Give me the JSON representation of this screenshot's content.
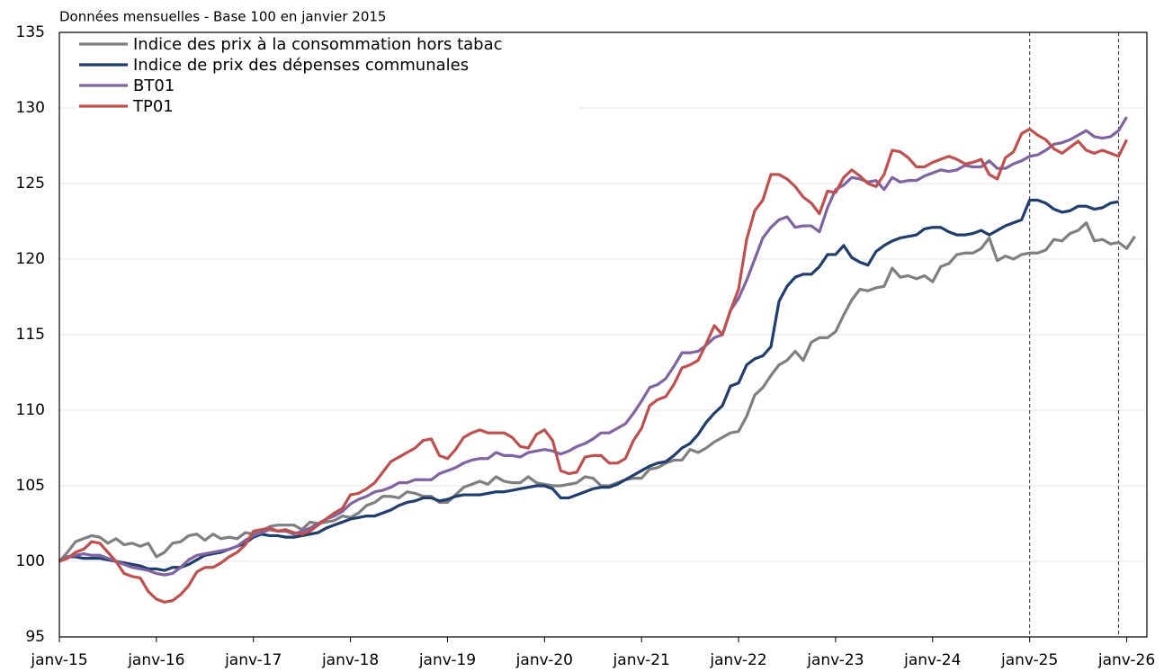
{
  "chart_data": {
    "type": "line",
    "subtitle": "Données mensuelles - Base 100 en janvier 2015",
    "categories": [
      "janv-15",
      null,
      null,
      null,
      null,
      null,
      null,
      null,
      null,
      null,
      null,
      null,
      "janv-16",
      null,
      null,
      null,
      null,
      null,
      null,
      null,
      null,
      null,
      null,
      null,
      "janv-17",
      null,
      null,
      null,
      null,
      null,
      null,
      null,
      null,
      null,
      null,
      null,
      "janv-18",
      null,
      null,
      null,
      null,
      null,
      null,
      null,
      null,
      null,
      null,
      null,
      "janv-19",
      null,
      null,
      null,
      null,
      null,
      null,
      null,
      null,
      null,
      null,
      null,
      "janv-20",
      null,
      null,
      null,
      null,
      null,
      null,
      null,
      null,
      null,
      null,
      null,
      "janv-21",
      null,
      null,
      null,
      null,
      null,
      null,
      null,
      null,
      null,
      null,
      null,
      "janv-22",
      null,
      null,
      null,
      null,
      null,
      null,
      null,
      null,
      null,
      null,
      null,
      "janv-23",
      null,
      null,
      null,
      null,
      null,
      null,
      null,
      null,
      null,
      null,
      null,
      "janv-24",
      null,
      null,
      null,
      null,
      null,
      null,
      null,
      null,
      null,
      null,
      null,
      "janv-25",
      null,
      null,
      null,
      null,
      null,
      null,
      null,
      null,
      null,
      null,
      null,
      "janv-26",
      null
    ],
    "series": [
      {
        "name": "Indice des prix à la consommation hors tabac",
        "color": "#7f7f7f",
        "values": [
          100.0,
          100.6,
          101.3,
          101.5,
          101.7,
          101.6,
          101.2,
          101.5,
          101.1,
          101.2,
          101.0,
          101.2,
          100.3,
          100.6,
          101.2,
          101.3,
          101.7,
          101.8,
          101.4,
          101.8,
          101.5,
          101.6,
          101.5,
          101.9,
          101.8,
          102.0,
          102.3,
          102.4,
          102.4,
          102.4,
          102.1,
          102.6,
          102.5,
          102.6,
          102.7,
          103.0,
          102.9,
          103.2,
          103.7,
          103.9,
          104.3,
          104.3,
          104.2,
          104.6,
          104.5,
          104.3,
          104.3,
          103.9,
          103.9,
          104.4,
          104.9,
          105.1,
          105.3,
          105.1,
          105.6,
          105.3,
          105.2,
          105.2,
          105.6,
          105.2,
          105.1,
          105.0,
          105.0,
          105.1,
          105.2,
          105.6,
          105.5,
          105.0,
          105.0,
          105.2,
          105.4,
          105.5,
          105.5,
          106.1,
          106.2,
          106.5,
          106.7,
          106.7,
          107.4,
          107.2,
          107.5,
          107.9,
          108.2,
          108.5,
          108.6,
          109.6,
          111.0,
          111.5,
          112.3,
          113.0,
          113.3,
          113.9,
          113.3,
          114.5,
          114.8,
          114.8,
          115.2,
          116.3,
          117.3,
          118.0,
          117.9,
          118.1,
          118.2,
          119.4,
          118.8,
          118.9,
          118.7,
          118.9,
          118.5,
          119.5,
          119.7,
          120.3,
          120.4,
          120.4,
          120.7,
          121.4,
          119.9,
          120.2,
          120.0,
          120.3,
          120.4,
          120.4,
          120.6,
          121.3,
          121.2,
          121.7,
          121.9,
          122.4,
          121.2,
          121.3,
          121.0,
          121.1,
          120.7,
          121.5
        ]
      },
      {
        "name": "Indice de prix des dépenses communales",
        "color": "#1f3d6e",
        "values": [
          100.0,
          100.3,
          100.3,
          100.2,
          100.2,
          100.2,
          100.1,
          100.0,
          99.9,
          99.8,
          99.7,
          99.5,
          99.5,
          99.4,
          99.6,
          99.6,
          99.8,
          100.1,
          100.4,
          100.5,
          100.6,
          100.8,
          101.0,
          101.2,
          101.6,
          101.8,
          101.7,
          101.7,
          101.6,
          101.6,
          101.7,
          101.8,
          101.9,
          102.2,
          102.4,
          102.6,
          102.8,
          102.9,
          103.0,
          103.0,
          103.2,
          103.4,
          103.7,
          103.9,
          104.0,
          104.2,
          104.2,
          104.0,
          104.1,
          104.3,
          104.4,
          104.4,
          104.4,
          104.5,
          104.6,
          104.6,
          104.7,
          104.8,
          104.9,
          105.0,
          105.0,
          104.8,
          104.2,
          104.2,
          104.4,
          104.6,
          104.8,
          104.9,
          104.9,
          105.1,
          105.4,
          105.7,
          106.0,
          106.3,
          106.5,
          106.6,
          107.0,
          107.5,
          107.8,
          108.4,
          109.2,
          109.8,
          110.3,
          111.6,
          111.8,
          113.0,
          113.4,
          113.6,
          114.2,
          117.2,
          118.2,
          118.8,
          119.0,
          119.0,
          119.5,
          120.3,
          120.3,
          120.9,
          120.1,
          119.8,
          119.6,
          120.5,
          120.9,
          121.2,
          121.4,
          121.5,
          121.6,
          122.0,
          122.1,
          122.1,
          121.8,
          121.6,
          121.6,
          121.7,
          121.9,
          121.6,
          121.9,
          122.2,
          122.4,
          122.6,
          123.9,
          123.9,
          123.7,
          123.3,
          123.1,
          123.2,
          123.5,
          123.5,
          123.3,
          123.4,
          123.7,
          123.8,
          null,
          null
        ]
      },
      {
        "name": "BT01",
        "color": "#8064a2",
        "values": [
          100.0,
          100.3,
          100.4,
          100.5,
          100.4,
          100.4,
          100.2,
          100.0,
          99.8,
          99.6,
          99.5,
          99.4,
          99.2,
          99.1,
          99.2,
          99.6,
          100.1,
          100.4,
          100.5,
          100.6,
          100.7,
          100.8,
          101.0,
          101.4,
          101.7,
          101.9,
          102.1,
          102.0,
          102.0,
          101.8,
          102.0,
          102.2,
          102.5,
          102.8,
          103.0,
          103.3,
          103.8,
          104.1,
          104.3,
          104.6,
          104.7,
          104.9,
          105.2,
          105.2,
          105.4,
          105.4,
          105.4,
          105.8,
          106.0,
          106.2,
          106.5,
          106.7,
          106.8,
          106.8,
          107.2,
          107.0,
          107.0,
          106.9,
          107.2,
          107.3,
          107.4,
          107.3,
          107.1,
          107.3,
          107.6,
          107.8,
          108.1,
          108.5,
          108.5,
          108.8,
          109.1,
          109.8,
          110.6,
          111.5,
          111.7,
          112.1,
          112.9,
          113.8,
          113.8,
          113.9,
          114.3,
          114.8,
          115.0,
          116.6,
          117.4,
          118.6,
          120.0,
          121.4,
          122.1,
          122.6,
          122.8,
          122.1,
          122.2,
          122.2,
          121.8,
          123.4,
          124.6,
          124.9,
          125.4,
          125.3,
          125.1,
          125.2,
          124.6,
          125.4,
          125.1,
          125.2,
          125.2,
          125.5,
          125.7,
          125.9,
          125.8,
          125.9,
          126.2,
          126.1,
          126.1,
          126.5,
          126.0,
          126.0,
          126.3,
          126.5,
          126.8,
          126.9,
          127.2,
          127.6,
          127.7,
          127.9,
          128.2,
          128.5,
          128.1,
          128.0,
          128.1,
          128.5,
          129.4,
          null
        ]
      },
      {
        "name": "TP01",
        "color": "#c0504d",
        "values": [
          100.0,
          100.2,
          100.6,
          100.8,
          101.3,
          101.2,
          100.6,
          100.0,
          99.2,
          99.0,
          98.9,
          98.0,
          97.5,
          97.3,
          97.4,
          97.8,
          98.4,
          99.3,
          99.6,
          99.6,
          99.9,
          100.3,
          100.6,
          101.1,
          102.0,
          102.1,
          102.2,
          102.0,
          102.1,
          101.9,
          101.8,
          102.0,
          102.4,
          102.8,
          103.2,
          103.5,
          104.4,
          104.5,
          104.8,
          105.2,
          105.9,
          106.6,
          106.9,
          107.2,
          107.5,
          108.0,
          108.1,
          107.0,
          106.8,
          107.4,
          108.2,
          108.5,
          108.7,
          108.5,
          108.5,
          108.5,
          108.2,
          107.6,
          107.5,
          108.4,
          108.7,
          108.0,
          106.0,
          105.8,
          105.9,
          106.9,
          107.0,
          107.0,
          106.5,
          106.5,
          106.8,
          108.0,
          108.8,
          110.3,
          110.7,
          110.9,
          111.7,
          112.8,
          113.0,
          113.3,
          114.4,
          115.6,
          115.0,
          116.6,
          118.0,
          121.3,
          123.2,
          123.9,
          125.6,
          125.6,
          125.3,
          124.8,
          124.1,
          123.7,
          123.0,
          124.5,
          124.4,
          125.4,
          125.9,
          125.5,
          125.0,
          124.8,
          125.6,
          127.2,
          127.1,
          126.7,
          126.1,
          126.1,
          126.4,
          126.6,
          126.8,
          126.6,
          126.3,
          126.4,
          126.6,
          125.6,
          125.3,
          126.7,
          127.1,
          128.3,
          128.6,
          128.2,
          127.9,
          127.3,
          127.0,
          127.4,
          127.8,
          127.2,
          127.0,
          127.2,
          127.0,
          126.8,
          127.9,
          null
        ]
      }
    ],
    "ylim": [
      95,
      135
    ],
    "yticks": [
      95,
      100,
      105,
      110,
      115,
      120,
      125,
      130,
      135
    ],
    "grid": true,
    "legend": "upper left",
    "vertical_lines": [
      120,
      131
    ]
  }
}
